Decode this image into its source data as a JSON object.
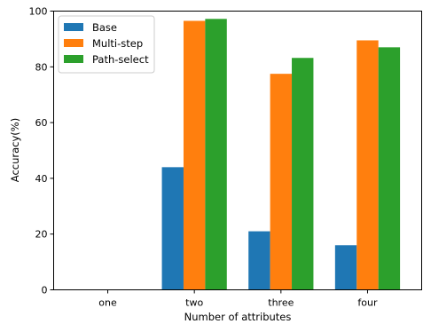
{
  "chart_data": {
    "type": "bar",
    "categories": [
      "one",
      "two",
      "three",
      "four"
    ],
    "series": [
      {
        "name": "Base",
        "color": "#1f77b4",
        "values": [
          0,
          44,
          21,
          16
        ]
      },
      {
        "name": "Multi-step",
        "color": "#ff7f0e",
        "values": [
          0,
          96.5,
          77.5,
          89.5
        ]
      },
      {
        "name": "Path-select",
        "color": "#2ca02c",
        "values": [
          0,
          97.2,
          83.2,
          87
        ]
      }
    ],
    "title": "",
    "xlabel": "Number of attributes",
    "ylabel": "Accuracy(%)",
    "ylim": [
      0,
      100
    ],
    "yticks": [
      "0",
      "20",
      "40",
      "60",
      "80",
      "100"
    ],
    "grid": false,
    "legend_position": "top-left"
  }
}
